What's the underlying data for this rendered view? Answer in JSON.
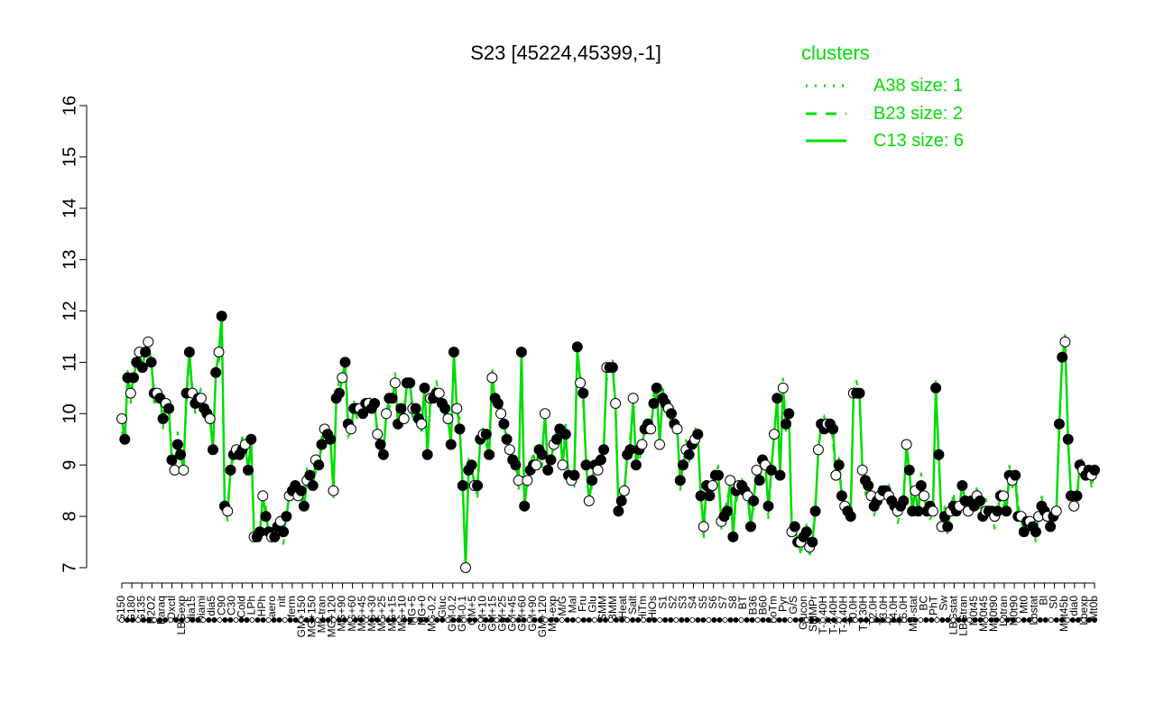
{
  "chart_data": {
    "type": "line",
    "title": "S23 [45224,45399,-1]",
    "xlabel": "",
    "ylabel": "",
    "ylim": [
      7,
      16
    ],
    "yticks": [
      7,
      8,
      9,
      10,
      11,
      12,
      13,
      14,
      15,
      16
    ],
    "grid": false,
    "legend": {
      "title": "clusters",
      "placement": "top-right",
      "entries": [
        {
          "label": "A38 size: 1",
          "style": "dotted"
        },
        {
          "label": "B23 size: 2",
          "style": "dashed"
        },
        {
          "label": "C13 size: 6",
          "style": "solid"
        }
      ]
    },
    "colors": {
      "series": "#00dd00",
      "axis": "#000000",
      "point_stroke": "#000000"
    },
    "x_labels": [
      "G150",
      "G180",
      "G135",
      "H2O2",
      "Paraq",
      "Oxctl",
      "LBGexp",
      "dia15",
      "Diami",
      "dia5",
      "C90",
      "C30",
      "Cold",
      "LPh",
      "HPh",
      "aero",
      "nit",
      "ferm",
      "GM+150",
      "MG+150",
      "M9-tran",
      "MG+120",
      "MG+90",
      "MG+60",
      "MG+45",
      "MG+30",
      "MG+25",
      "MG+15",
      "MG+10",
      "MG+5",
      "MG+0",
      "MG-0.2",
      "Gluc",
      "GM-0.2",
      "GM-0.1",
      "GM+5",
      "GM+10",
      "GM+15",
      "GM+25",
      "GM+45",
      "GM+60",
      "GM+90",
      "GM+120",
      "M9-exp",
      "M/G",
      "Mal",
      "Fru",
      "Glu",
      "SMM",
      "BMM",
      "Heat",
      "Salt",
      "HiTm",
      "HiOs",
      "S1",
      "S2",
      "S3",
      "S4",
      "S5",
      "S6",
      "S7",
      "S8",
      "BT",
      "B36",
      "B60",
      "LoTm",
      "Pyr",
      "G/S",
      "Glucon",
      "SMMPr",
      "T-3.40H",
      "T-2.40H",
      "T-1.40H",
      "T0.0H",
      "T1.30H",
      "T2.0H",
      "T3.0H",
      "T4.0H",
      "T5.0H",
      "M9-stat",
      "BC",
      "LPhT",
      "Sw",
      "LBGstat",
      "LBGtran",
      "M0t45",
      "M40t45",
      "M40t90",
      "Lbtran",
      "M0t90",
      "Mt0",
      "Lbstat",
      "Bl",
      "S0",
      "M0t45b",
      "dia0",
      "Lbexp",
      "Mt0b"
    ],
    "series": [
      {
        "values": [
          9.9,
          9.5,
          10.7,
          10.4,
          10.7,
          11.0,
          11.2,
          10.9,
          11.2,
          11.4,
          11.0,
          10.4,
          10.4,
          10.3,
          9.9,
          10.2,
          10.1,
          9.1,
          8.9,
          9.4,
          9.2,
          8.9,
          10.4,
          11.2,
          10.4,
          10.2,
          10.3,
          10.3,
          10.1,
          10.0,
          9.9,
          9.3,
          10.8,
          11.2,
          11.9,
          8.2,
          8.1,
          8.9,
          9.2,
          9.3,
          9.2,
          9.3,
          9.4,
          8.9,
          9.5,
          7.6,
          7.6,
          7.7,
          8.4,
          8.0,
          7.7,
          7.6,
          7.6,
          7.8,
          7.9,
          7.7,
          8.0,
          8.4,
          8.5,
          8.6,
          8.4,
          8.5,
          8.2,
          8.7,
          8.8,
          8.6,
          9.1,
          9.0,
          9.4,
          9.7,
          9.6,
          9.5,
          8.5,
          10.3,
          10.4,
          10.7,
          11.0,
          9.8,
          9.7,
          10.1,
          10.1,
          10.1,
          10.0,
          10.2,
          10.2,
          10.1,
          10.2,
          9.6,
          9.4,
          9.2,
          10.0,
          10.3,
          10.3,
          10.6,
          9.8,
          10.1,
          9.9,
          10.6,
          10.6,
          10.1,
          10.1,
          9.9,
          9.8,
          10.5,
          9.2,
          10.3,
          10.3,
          10.4,
          10.4,
          10.2,
          10.1,
          9.9,
          9.4,
          11.2,
          10.1,
          9.7,
          8.6,
          7.0,
          8.9,
          9.0,
          8.6,
          8.6,
          9.5,
          9.6,
          9.6,
          9.2,
          10.7,
          10.3,
          10.2,
          10.0,
          9.8,
          9.5,
          9.3,
          9.1,
          9.0,
          8.7,
          11.2,
          8.2,
          8.7,
          8.9,
          9.0,
          9.0,
          9.3,
          9.2,
          10.0,
          8.9,
          9.1,
          9.4,
          9.5,
          9.7,
          9.0,
          9.6,
          8.8,
          8.7,
          8.8,
          11.3,
          10.6,
          10.4,
          9.0,
          8.3,
          8.7,
          9.0,
          8.9,
          9.1,
          9.3,
          10.9,
          10.9,
          10.9,
          10.2,
          8.1,
          8.3,
          8.5,
          9.2,
          9.3,
          10.3,
          9.0,
          9.3,
          9.4,
          9.7,
          9.8,
          9.7,
          10.2,
          10.5,
          9.4,
          10.3,
          10.2,
          10.1,
          10.0,
          9.8,
          9.7,
          8.7,
          9.0,
          9.3,
          9.2,
          9.4,
          9.5,
          9.6,
          8.4,
          7.8,
          8.6,
          8.4,
          8.6,
          8.8,
          8.8,
          7.9,
          8.0,
          8.1,
          8.7,
          7.6,
          8.5,
          8.6,
          8.6,
          8.5,
          8.4,
          7.8,
          8.3,
          8.9,
          8.7,
          9.1,
          9.0,
          8.2,
          8.9,
          9.6,
          10.3,
          8.8,
          10.5,
          9.8,
          10.0,
          7.7,
          7.8,
          7.5,
          7.5,
          7.6,
          7.7,
          7.4,
          7.5,
          8.1,
          9.3,
          9.8,
          9.7,
          9.8,
          9.8,
          9.7,
          8.8,
          9.0,
          8.4,
          8.2,
          8.1,
          8.0,
          10.4,
          10.4,
          10.4,
          8.9,
          8.7,
          8.6,
          8.4,
          8.2,
          8.3,
          8.4,
          8.5,
          8.5,
          8.4,
          8.3,
          8.2,
          8.1,
          8.2,
          8.3,
          9.4,
          8.9,
          8.1,
          8.5,
          8.1,
          8.6,
          8.4,
          8.1,
          8.2,
          8.1,
          10.5,
          9.2,
          7.8,
          8.0,
          7.8,
          8.1,
          8.2,
          8.1,
          8.2,
          8.6,
          8.3,
          8.1,
          8.3,
          8.2,
          8.4,
          8.3,
          8.0,
          8.1,
          8.1,
          8.1,
          8.0,
          8.1,
          8.4,
          8.4,
          8.1,
          8.8,
          8.7,
          8.8,
          8.0,
          8.0,
          7.7,
          7.9,
          7.9,
          7.8,
          7.7,
          8.0,
          8.2,
          8.1,
          8.0,
          7.8,
          8.0,
          8.1,
          9.8,
          11.1,
          11.4,
          9.5,
          8.4,
          8.2,
          8.4,
          9.0,
          8.9,
          8.8,
          8.9,
          8.8,
          8.9
        ]
      }
    ]
  }
}
